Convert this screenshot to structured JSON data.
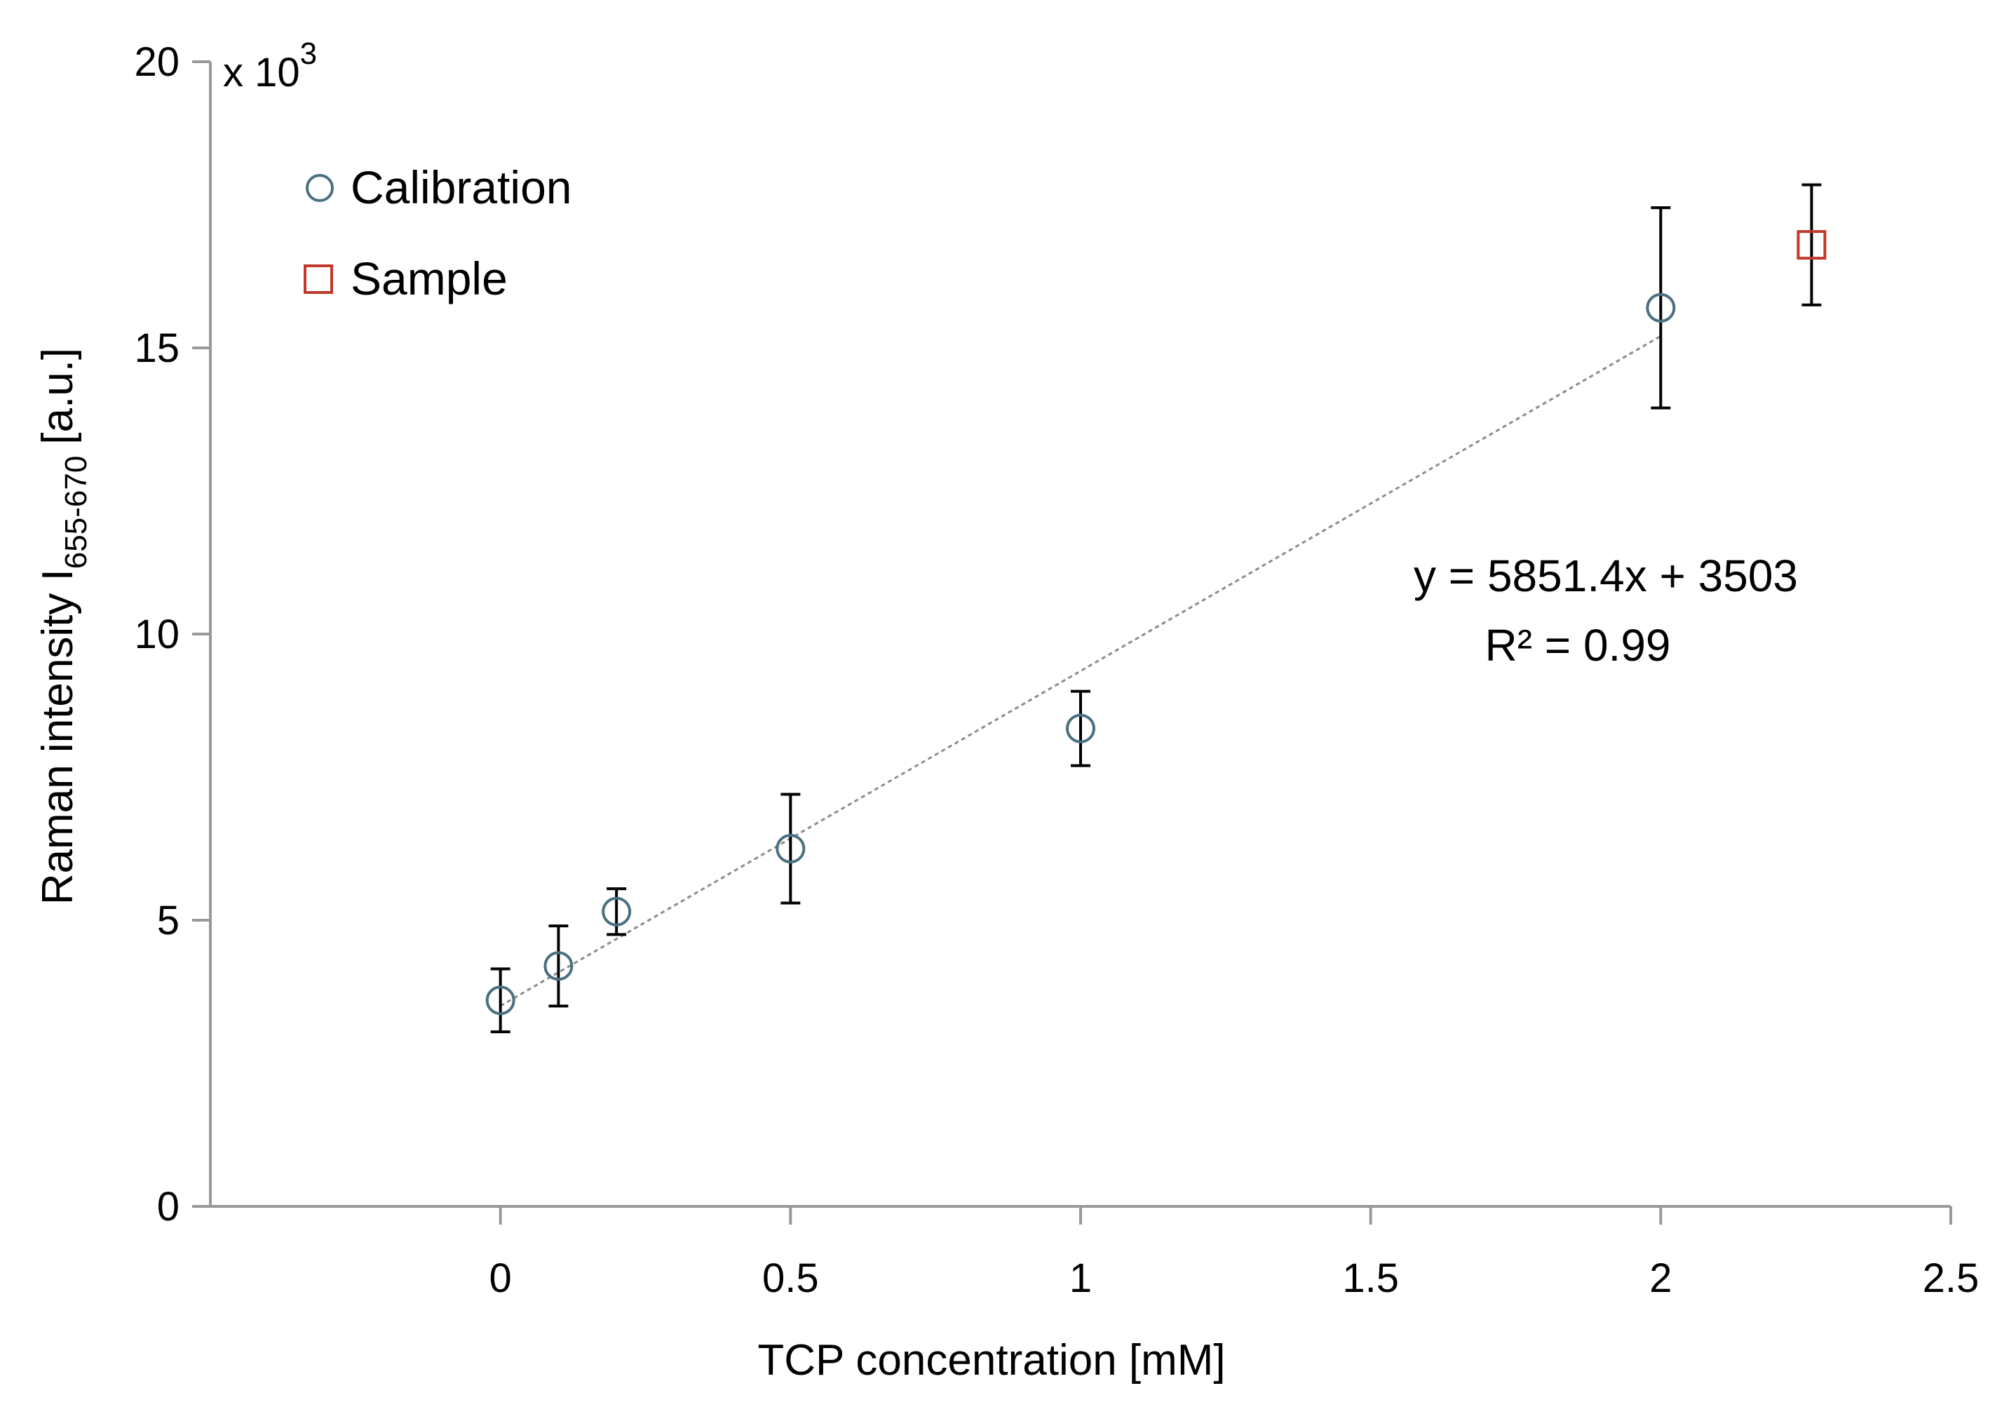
{
  "chart_data": {
    "type": "scatter",
    "title": "",
    "xlabel": "TCP concentration [mM]",
    "ylabel": "Raman intensity I",
    "ylabel_subscript": "655-670",
    "ylabel_unit": "[a.u.]",
    "y_multiplier_label": "x 10",
    "y_multiplier_exponent": "3",
    "xlim": [
      -0.5,
      2.5
    ],
    "ylim": [
      0,
      20
    ],
    "x_ticks": [
      0,
      0.5,
      1,
      1.5,
      2,
      2.5
    ],
    "x_tick_labels": [
      "0",
      "0.5",
      "1",
      "1.5",
      "2",
      "2.5"
    ],
    "y_ticks": [
      0,
      5,
      10,
      15,
      20
    ],
    "y_tick_labels": [
      "0",
      "5",
      "10",
      "15",
      "20"
    ],
    "grid": false,
    "legend_position": "top-left",
    "series": [
      {
        "name": "Calibration",
        "marker": "circle",
        "color": "#4a7080",
        "points": [
          {
            "x": 0,
            "y": 3.6,
            "err": 0.55
          },
          {
            "x": 0.1,
            "y": 4.2,
            "err": 0.7
          },
          {
            "x": 0.2,
            "y": 5.15,
            "err": 0.4
          },
          {
            "x": 0.5,
            "y": 6.25,
            "err": 0.95
          },
          {
            "x": 1,
            "y": 8.35,
            "err": 0.65
          },
          {
            "x": 2,
            "y": 15.7,
            "err": 1.75
          }
        ]
      },
      {
        "name": "Sample",
        "marker": "square",
        "color": "#c0392b",
        "points": [
          {
            "x": 2.26,
            "y": 16.8,
            "err": 1.05
          }
        ]
      }
    ],
    "trendline": {
      "slope": 5851.4,
      "intercept": 3503,
      "x_range": [
        0,
        2
      ],
      "color": "#8c8c8c",
      "equation_label": "y = 5851.4x + 3503",
      "r2_label": "R² = 0.99"
    }
  }
}
